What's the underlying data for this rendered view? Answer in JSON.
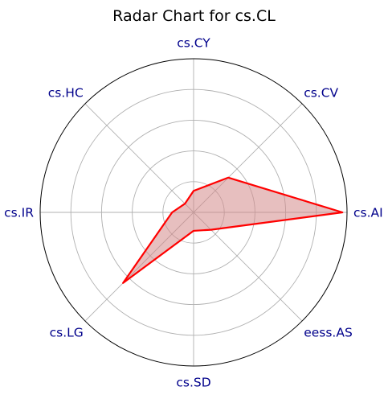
{
  "chart_data": {
    "type": "radar",
    "title": "Radar Chart for cs.CL",
    "categories": [
      "cs.AI",
      "cs.CV",
      "cs.CY",
      "cs.HC",
      "cs.IR",
      "cs.LG",
      "cs.SD",
      "eess.AS"
    ],
    "series": [
      {
        "values": [
          0.97,
          0.32,
          0.14,
          0.08,
          0.14,
          0.65,
          0.12,
          0.16
        ]
      }
    ],
    "rlim": [
      0,
      1
    ],
    "grid": true,
    "colors": {
      "line": "#ff0000",
      "fill": "#d48a8a",
      "label": "#00008b",
      "grid": "#b0b0b0",
      "frame": "#000000"
    }
  }
}
